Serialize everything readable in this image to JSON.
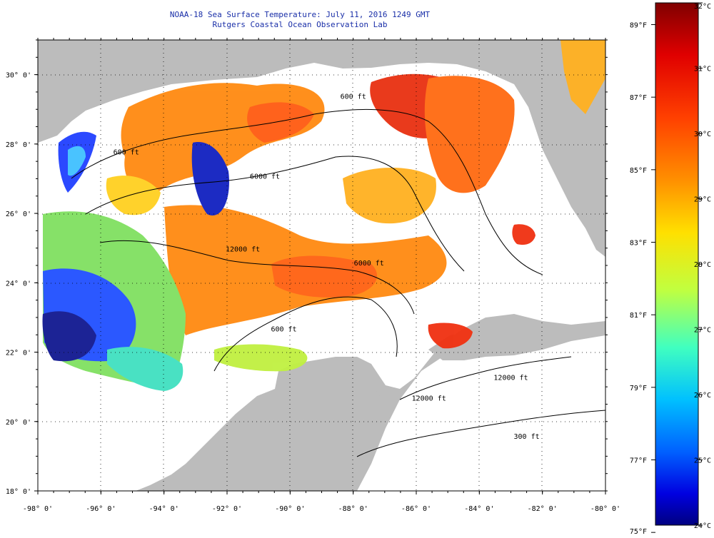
{
  "map": {
    "title": "NOAA-18 Sea Surface Temperature:  July 11, 2016 1249 GMT",
    "subtitle": "Rutgers Coastal Ocean Observation Lab",
    "extent": {
      "lon": [
        -98,
        -80
      ],
      "lat": [
        18,
        31
      ]
    },
    "lon_ticks": [
      "-98° 0'",
      "-96° 0'",
      "-94° 0'",
      "-92° 0'",
      "-90° 0'",
      "-88° 0'",
      "-86° 0'",
      "-84° 0'",
      "-82° 0'",
      "-80° 0'"
    ],
    "lat_ticks": [
      "18° 0'",
      "20° 0'",
      "22° 0'",
      "24° 0'",
      "26° 0'",
      "28° 0'",
      "30° 0'"
    ],
    "depth_labels": [
      {
        "text": "600 ft",
        "lon": -95.2,
        "lat": 27.7
      },
      {
        "text": "600 ft",
        "lon": -88.0,
        "lat": 29.3
      },
      {
        "text": "6000 ft",
        "lon": -90.8,
        "lat": 27.0
      },
      {
        "text": "12000 ft",
        "lon": -91.5,
        "lat": 24.9
      },
      {
        "text": "6000 ft",
        "lon": -87.5,
        "lat": 24.5
      },
      {
        "text": "600 ft",
        "lon": -90.2,
        "lat": 22.6
      },
      {
        "text": "12000 ft",
        "lon": -85.6,
        "lat": 20.6
      },
      {
        "text": "12000 ft",
        "lon": -83.0,
        "lat": 21.2
      },
      {
        "text": "300 ft",
        "lon": -82.5,
        "lat": 19.5
      }
    ],
    "colors": {
      "land": "#bcbcbc",
      "no_data": "#ffffff",
      "title": "#1a2fa8"
    }
  },
  "colorbar": {
    "celsius": [
      "32°C",
      "31°C",
      "30°C",
      "29°C",
      "28°C",
      "27°C",
      "26°C",
      "25°C",
      "24°C"
    ],
    "fahrenheit": [
      "89°F",
      "87°F",
      "85°F",
      "83°F",
      "81°F",
      "79°F",
      "77°F",
      "75°F"
    ],
    "stops": [
      "#800000",
      "#e00000",
      "#ff4000",
      "#ff9000",
      "#ffe000",
      "#c0ff40",
      "#40ffc0",
      "#00c0ff",
      "#0060ff",
      "#0000e0",
      "#000080"
    ]
  }
}
